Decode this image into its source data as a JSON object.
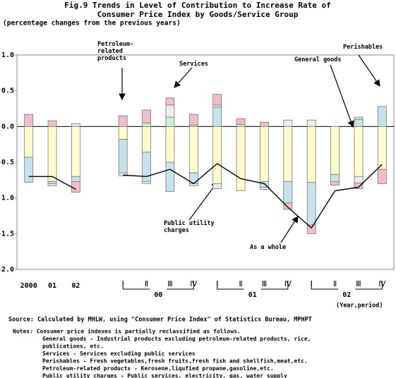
{
  "chart_data": {
    "type": "bar",
    "title": "Fig.9  Trends in Level of Contribution to Increase Rate of",
    "title_line2": "Consumer Price Index by Goods/Service Group",
    "subtitle": "(percentage changes from the previous years)",
    "x_label": "(Year,period)",
    "categories": [
      "2000",
      "01",
      "02",
      null,
      "Ⅰ",
      "Ⅱ",
      "Ⅲ",
      "Ⅳ",
      "Ⅰ",
      "Ⅱ",
      "Ⅲ",
      "Ⅳ",
      "Ⅰ",
      "Ⅱ",
      "Ⅲ",
      "Ⅳ"
    ],
    "groups": [
      "00",
      "01",
      "02"
    ],
    "series": [
      {
        "name": "General goods",
        "color": "#ffffcc",
        "values": [
          -0.43,
          -0.77,
          -0.7,
          null,
          -0.18,
          -0.36,
          -0.5,
          -0.65,
          -0.8,
          -0.9,
          -0.77,
          -0.77,
          -0.78,
          -0.67,
          -0.7,
          -0.6
        ]
      },
      {
        "name": "Perishables",
        "color": "#c6e2ea",
        "values": [
          -0.35,
          -0.03,
          -0.07,
          null,
          -0.47,
          -0.41,
          -0.41,
          -0.15,
          0.27,
          0,
          -0.08,
          -0.3,
          -0.6,
          -0.1,
          0.1,
          0.28
        ]
      },
      {
        "name": "Services",
        "color": "#ccf2cc",
        "values": [
          0,
          0,
          0,
          null,
          0,
          0.05,
          0.13,
          0.02,
          0.03,
          0.03,
          0,
          0,
          0,
          0,
          0.03,
          0
        ]
      },
      {
        "name": "Public utility charges",
        "color": "#ececec",
        "values": [
          0,
          -0.03,
          0.04,
          null,
          -0.04,
          -0.03,
          0.17,
          -0.03,
          -0.07,
          0,
          -0.03,
          0.09,
          0.09,
          0,
          -0.09,
          0
        ]
      },
      {
        "name": "Petroleum-related products",
        "color": "#f2bccb",
        "values": [
          0.17,
          0.08,
          -0.15,
          null,
          0.15,
          0.18,
          0.1,
          0.15,
          0.15,
          0.08,
          0.06,
          -0.09,
          -0.12,
          -0.05,
          -0.08,
          -0.2
        ]
      }
    ],
    "total": {
      "name": "As a whole",
      "color": "#000000",
      "values": [
        -0.7,
        -0.7,
        -0.88,
        null,
        -0.68,
        -0.7,
        -0.6,
        -0.8,
        -0.52,
        -0.73,
        -0.8,
        -1.13,
        -1.42,
        -0.9,
        -0.85,
        -0.53
      ]
    },
    "ylim": [
      -2.0,
      1.0
    ],
    "yticks": [
      {
        "value": 1.0,
        "label": "1.0"
      },
      0.5,
      {
        "value": 0.0,
        "label": "0.0"
      },
      -0.5,
      {
        "value": -1.0,
        "label": "-1.0"
      },
      -1.5,
      {
        "value": -2.0,
        "label": "-2.0"
      }
    ],
    "grid": false,
    "source": "Source:  Calculated by MHLW, using \"Consumer Price Index\" of Statistics Bureau, MPHPT",
    "notes": [
      "Notes: Consumer price indexes is partially reclassified as follows.",
      "General goods - Industrial products excluding petroleum-related products, rice,",
      "publications, etc.",
      "Services - Services excluding public services",
      "Perishables - Fresh vegetables,fresh fruits,fresh fish and shellfish,meat,etc.",
      "Petroleum-related products - Kerosene,liqufied propane,gasoline,etc.",
      "Public utility charges - Public services, electricity, gas, water supply"
    ]
  }
}
